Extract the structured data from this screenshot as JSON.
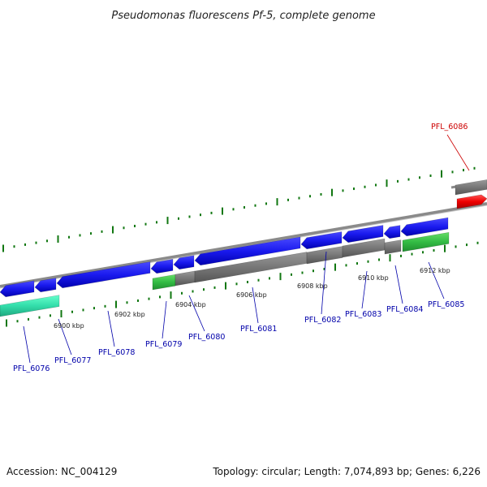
{
  "title": "Pseudomonas fluorescens Pf-5, complete genome",
  "footer": {
    "accession": "Accession: NC_004129",
    "summary": "Topology: circular; Length: 7,074,893 bp; Genes: 6,226"
  },
  "scale_labels": [
    "6900 kbp",
    "6902 kbp",
    "6904 kbp",
    "6906 kbp",
    "6908 kbp",
    "6910 kbp",
    "6912 kbp"
  ],
  "genes": [
    {
      "name": "PFL_6076",
      "color": "#0000aa"
    },
    {
      "name": "PFL_6077",
      "color": "#0000aa"
    },
    {
      "name": "PFL_6078",
      "color": "#0000aa"
    },
    {
      "name": "PFL_6079",
      "color": "#0000aa"
    },
    {
      "name": "PFL_6080",
      "color": "#0000aa"
    },
    {
      "name": "PFL_6081",
      "color": "#0000aa"
    },
    {
      "name": "PFL_6082",
      "color": "#0000aa"
    },
    {
      "name": "PFL_6083",
      "color": "#0000aa"
    },
    {
      "name": "PFL_6084",
      "color": "#0000aa"
    },
    {
      "name": "PFL_6085",
      "color": "#0000aa"
    },
    {
      "name": "PFL_6086",
      "color": "#cc0000"
    }
  ],
  "colors": {
    "cds_forward": "#1a1aee",
    "gene_gray": "#777777",
    "rna_green": "#33bb44",
    "teal": "#33ddaa",
    "highlight": "#ee0000",
    "tick_green": "#117711",
    "backbone": "#888888"
  }
}
